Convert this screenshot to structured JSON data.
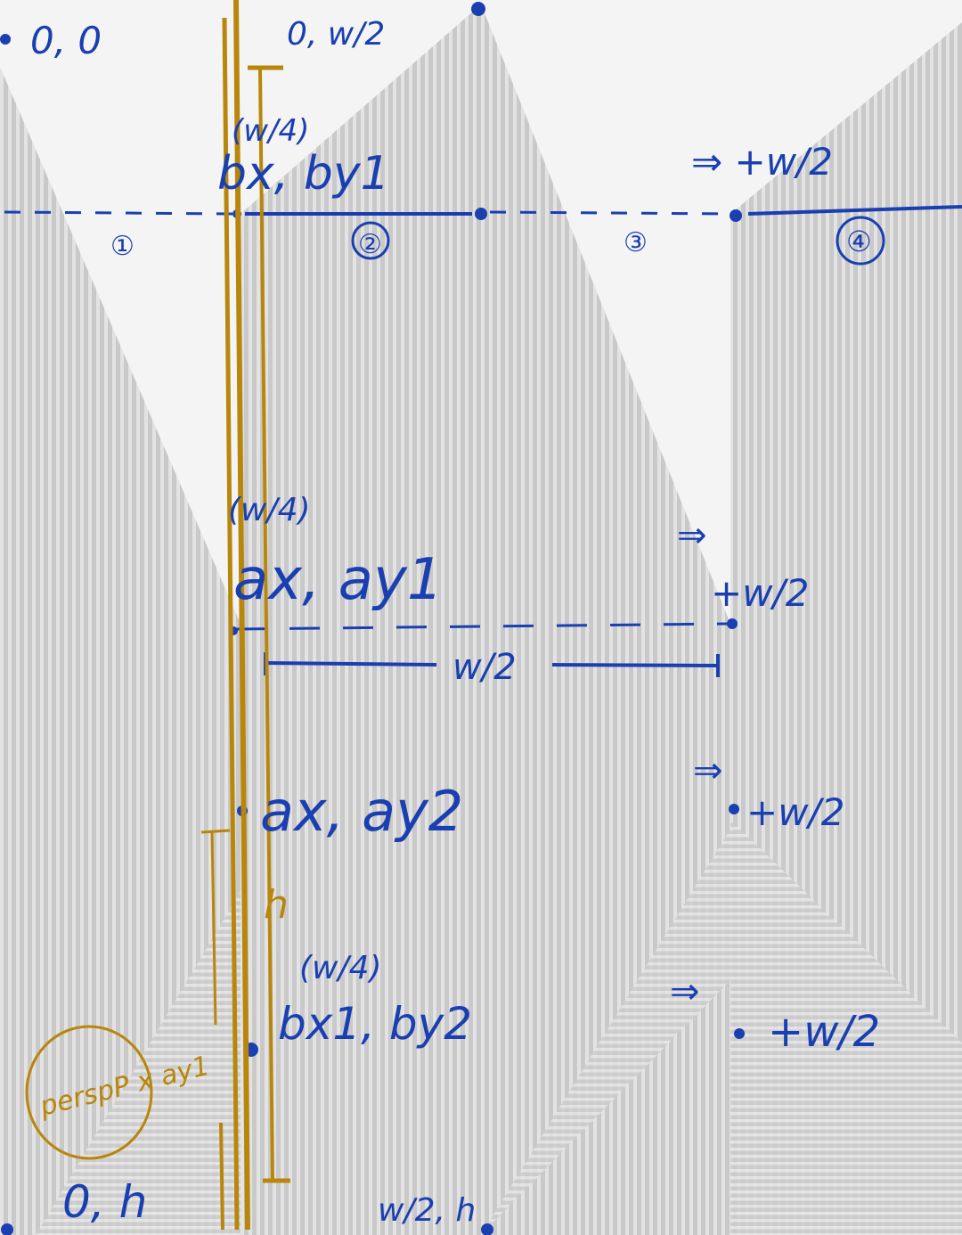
{
  "colors": {
    "ink_blue": "#1a3fb0",
    "ink_gold": "#b8860b",
    "wall_gray": "#c4c4c4",
    "wall_stripe": "#dedede",
    "background": "#f4f4f4"
  },
  "labels": {
    "origin": "0, 0",
    "top_mid": "0, w/2",
    "bottom_left": "0, h",
    "bottom_mid": "w/2, h",
    "b_top_width": "(w/4)",
    "b_top": "bx, by1",
    "b_top_shift": "⇒ +w/2",
    "region_1": "①",
    "region_2": "②",
    "region_3": "③",
    "region_4": "④",
    "a_top_width": "(w/4)",
    "a_top": "ax, ay1",
    "a_top_arrow": "⇒",
    "a_top_shift": "+w/2",
    "half_width": "w/2",
    "a_bottom": "ax, ay2",
    "a_bottom_arrow": "⇒",
    "a_bottom_shift": "+w/2",
    "b_bottom_width": "(w/4)",
    "b_bottom": "bx1, by2",
    "b_bottom_arrow": "⇒",
    "b_bottom_shift": "+w/2",
    "height": "h",
    "persp": "perspP x ay1"
  }
}
